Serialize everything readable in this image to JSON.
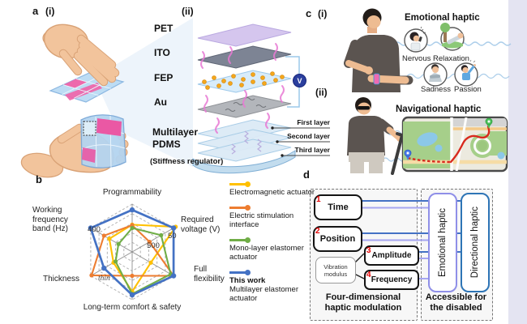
{
  "a": {
    "label": "a",
    "sub_i": "(i)",
    "sub_ii": "(ii)",
    "layers": [
      "PET",
      "ITO",
      "FEP",
      "Au"
    ],
    "pdms": [
      "Multilayer",
      "PDMS"
    ],
    "stiffness": "(Stiffness regulator)",
    "callouts": [
      "First layer",
      "Second layer",
      "Third layer"
    ],
    "voltage": "V"
  },
  "b": {
    "label": "b"
  },
  "chart_data": {
    "type": "radar",
    "axes": [
      "Programmability",
      "Required voltage (V)",
      "Full flexibility",
      "Long-term comfort & safety",
      "Thickness",
      "Working frequency band (Hz)"
    ],
    "rings": 5,
    "scale_note": "qualitative, outer edge = better",
    "annotations": [
      {
        "text": "400",
        "axis": "Working frequency band (Hz)"
      },
      {
        "text": "50",
        "axis": "Required voltage (V)"
      },
      {
        "text": "500",
        "axis": "Required voltage (V)"
      },
      {
        "text": "thin",
        "axis": "Thickness"
      }
    ],
    "series": [
      {
        "name": "Electromagnetic actuator",
        "color": "#FFC000",
        "values": [
          0.57,
          1.05,
          0.45,
          0.83,
          0.45,
          0.55
        ]
      },
      {
        "name": "Electric stimulation interface",
        "color": "#ED7D31",
        "values": [
          0.56,
          0.42,
          1.0,
          0.5,
          0.98,
          0.68
        ]
      },
      {
        "name": "Mono-layer elastomer actuator",
        "color": "#70AD47",
        "values": [
          0.5,
          0.7,
          0.93,
          0.88,
          0.4,
          0.33
        ]
      },
      {
        "name_bold": "This work",
        "name": "Multilayer elastomer actuator",
        "color": "#4472C4",
        "values": [
          0.88,
          1.0,
          1.0,
          0.9,
          0.68,
          1.0
        ]
      }
    ]
  },
  "c": {
    "label": "c",
    "sub_i": "(i)",
    "sub_ii": "(ii)",
    "emotional_title": "Emotional haptic",
    "navigational_title": "Navigational haptic",
    "emotions": [
      "Nervous",
      "Relaxation",
      "Sadness",
      "Passion"
    ]
  },
  "d": {
    "label": "d",
    "inputs": [
      {
        "num": "1",
        "label": "Time"
      },
      {
        "num": "2",
        "label": "Position"
      },
      {
        "num": "3",
        "label": "Amplitude"
      },
      {
        "num": "4",
        "label": "Frequency"
      }
    ],
    "vibration": [
      "Vibration",
      "modulus"
    ],
    "outputs": [
      "Emotional haptic",
      "Directional haptic"
    ],
    "output_colors": [
      "#8f8fe8",
      "#2E75B6"
    ],
    "line_colors": {
      "dark": "#4472C4",
      "light": "#A6A6F0"
    },
    "caption_left": [
      "Four-dimensional",
      "haptic modulation"
    ],
    "caption_right": [
      "Accessible for",
      "the disabled"
    ]
  }
}
